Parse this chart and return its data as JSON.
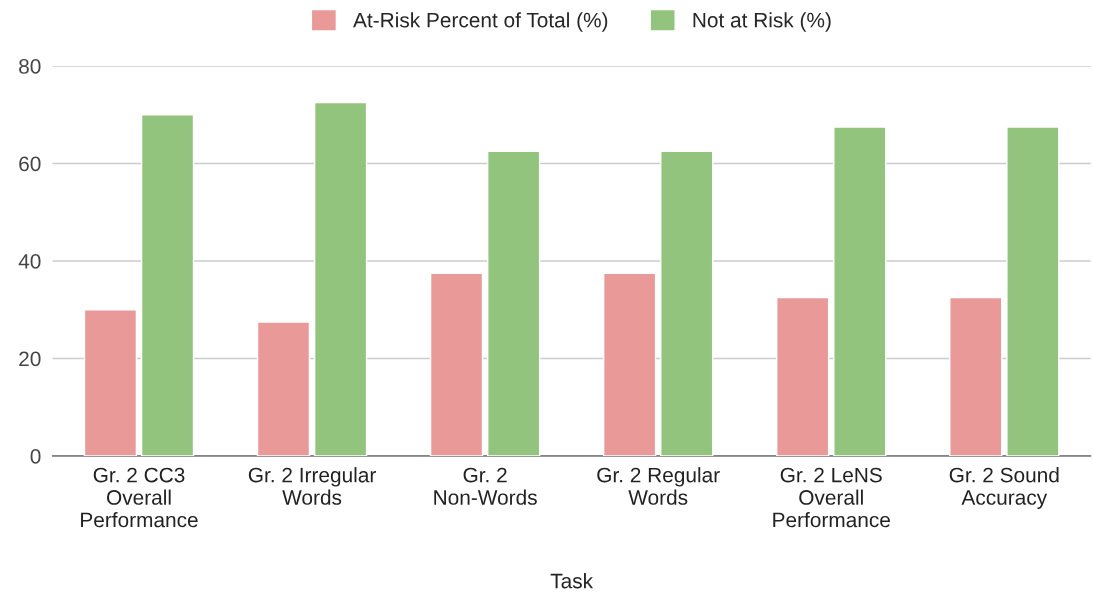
{
  "chart_data": {
    "type": "bar",
    "xlabel": "Task",
    "categories": [
      "Gr. 2 CC3\nOverall\nPerformance",
      "Gr. 2 Irregular\nWords",
      "Gr. 2\nNon-Words",
      "Gr. 2 Regular\nWords",
      "Gr. 2 LeNS\nOverall\nPerformance",
      "Gr. 2 Sound\nAccuracy"
    ],
    "series": [
      {
        "name": "At-Risk Percent of Total (%)",
        "color": "#ea9999",
        "values": [
          30,
          27.5,
          37.5,
          37.5,
          32.5,
          32.5
        ]
      },
      {
        "name": "Not at Risk (%)",
        "color": "#93c47d",
        "values": [
          70,
          72.5,
          62.5,
          62.5,
          67.5,
          67.5
        ]
      }
    ],
    "ylim": [
      0,
      80
    ],
    "yticks": [
      0,
      20,
      40,
      60,
      80
    ],
    "grid": "y",
    "legend": "top"
  }
}
